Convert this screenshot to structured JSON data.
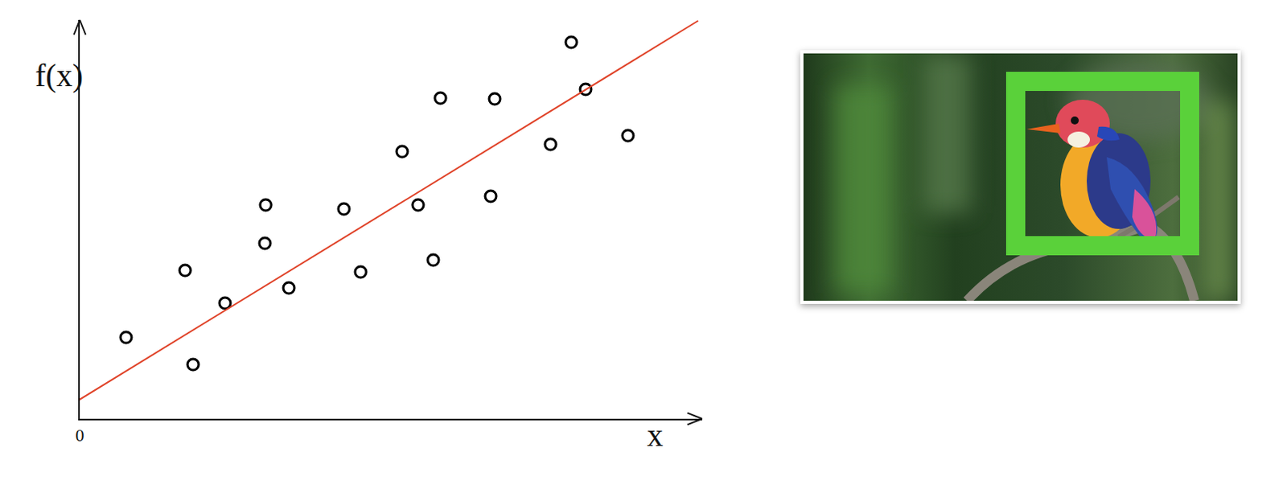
{
  "chart_data": {
    "type": "scatter",
    "x_label": "x",
    "y_label": "f(x)",
    "series": [
      {
        "type": "scatter",
        "color": "#000000",
        "marker": "circle-open",
        "x": [
          5.8,
          13.2,
          14.2,
          18.2,
          23.3,
          23.2,
          26.2,
          33.1,
          35.2,
          40.4,
          42.4,
          44.3,
          45.2,
          51.5,
          52.0,
          59.0,
          61.6,
          63.4,
          68.7
        ],
        "values": [
          10.2,
          18.6,
          6.8,
          14.5,
          26.8,
          22.0,
          16.4,
          26.3,
          18.4,
          33.5,
          26.8,
          19.9,
          40.2,
          27.9,
          40.1,
          34.4,
          47.2,
          41.3,
          35.5
        ]
      },
      {
        "type": "line",
        "color": "#e0442a",
        "line_style": "solid",
        "x": [
          -2,
          77.5
        ],
        "values": [
          1.2,
          49.9
        ]
      }
    ],
    "xlim": [
      0,
      78
    ],
    "ylim": [
      0,
      50
    ],
    "xticks": [
      0
    ],
    "yticks": [],
    "tick_labels": "x",
    "grid": false
  }
}
